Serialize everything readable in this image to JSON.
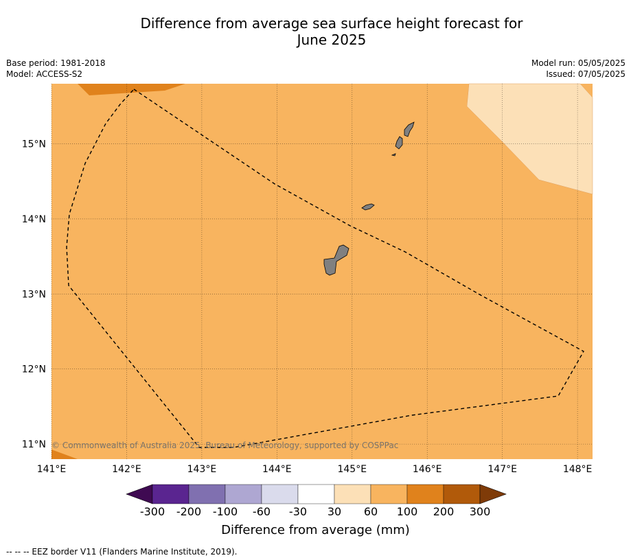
{
  "title_line1": "Difference from average sea surface height forecast for",
  "title_line2": "June 2025",
  "meta_left": {
    "base_period": "Base period: 1981-2018",
    "model": "Model: ACCESS-S2"
  },
  "meta_right": {
    "model_run": "Model run: 05/05/2025",
    "issued": "Issued: 07/05/2025"
  },
  "map": {
    "lon_range": [
      141.0,
      148.2
    ],
    "lat_range": [
      10.8,
      15.8
    ],
    "lon_ticks": [
      "141°E",
      "142°E",
      "143°E",
      "144°E",
      "145°E",
      "146°E",
      "147°E",
      "148°E"
    ],
    "lat_ticks": [
      "11°N",
      "12°N",
      "13°N",
      "14°N",
      "15°N"
    ],
    "copyright": "© Commonwealth of Australia 2025, Bureau of Meteorology, supported by COSPPac",
    "colors": {
      "ocean_60_100": "#f8b45f",
      "band_30_60": "#fce0b7",
      "band_100_200": "#e0821c",
      "land": "#808080",
      "border": "#000000"
    }
  },
  "colorbar": {
    "labels": [
      "-300",
      "-200",
      "-100",
      "-60",
      "-30",
      "30",
      "60",
      "100",
      "200",
      "300"
    ],
    "colors": [
      "#3f0a52",
      "#5a2590",
      "#8070b0",
      "#aea7d2",
      "#dadbec",
      "#ffffff",
      "#fce0b7",
      "#f8b45f",
      "#e0821c",
      "#b15a0a",
      "#7f3b08"
    ],
    "title": "Difference from average (mm)"
  },
  "footer": "--  --  -- EEZ border V11 (Flanders Marine Institute, 2019)."
}
